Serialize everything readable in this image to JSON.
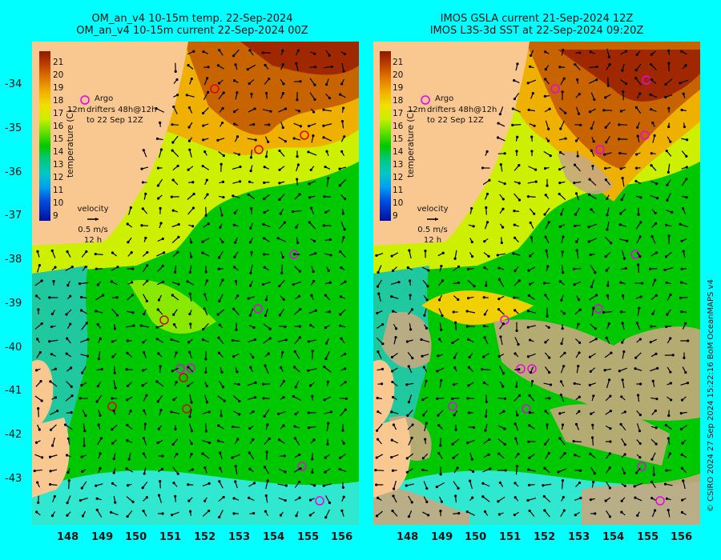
{
  "left_panel": {
    "title_line1": "OM_an_v4  10-15m temp. 22-Sep-2024",
    "title_line2": "OM_an_v4  10-15m current 22-Sep-2024 00Z"
  },
  "right_panel": {
    "title_line1": "IMOS GSLA current 21-Sep-2024 12Z",
    "title_line2": "IMOS L3S-3d SST at 22-Sep-2024 09:20Z"
  },
  "y_axis_labels": [
    "-34",
    "-35",
    "-36",
    "-37",
    "-38",
    "-39",
    "-40",
    "-41",
    "-42",
    "-43"
  ],
  "x_axis_labels": [
    "148",
    "149",
    "150",
    "151",
    "152",
    "153",
    "154",
    "155",
    "156"
  ],
  "colorbar": {
    "ticks": [
      "21",
      "20",
      "19",
      "18",
      "17",
      "16",
      "15",
      "14",
      "13",
      "12",
      "11",
      "10",
      "9"
    ],
    "title": "temperature (C)"
  },
  "legend": {
    "argo": "Argo",
    "drifters_line1": "drifters 48h@12h",
    "drifters_line2": "to 22 Sep 12Z",
    "twelve_m": "12m",
    "velocity_title": "velocity",
    "velocity_scale": "0.5 m/s",
    "velocity_time": "12 h"
  },
  "credit": "© CSIRO 2024   27 Sep 2024 15:22:16 BoM OceanMAPS v4",
  "colors": {
    "land": "#f9c890",
    "background": "#00ffff",
    "argo": "#ee00ee"
  }
}
